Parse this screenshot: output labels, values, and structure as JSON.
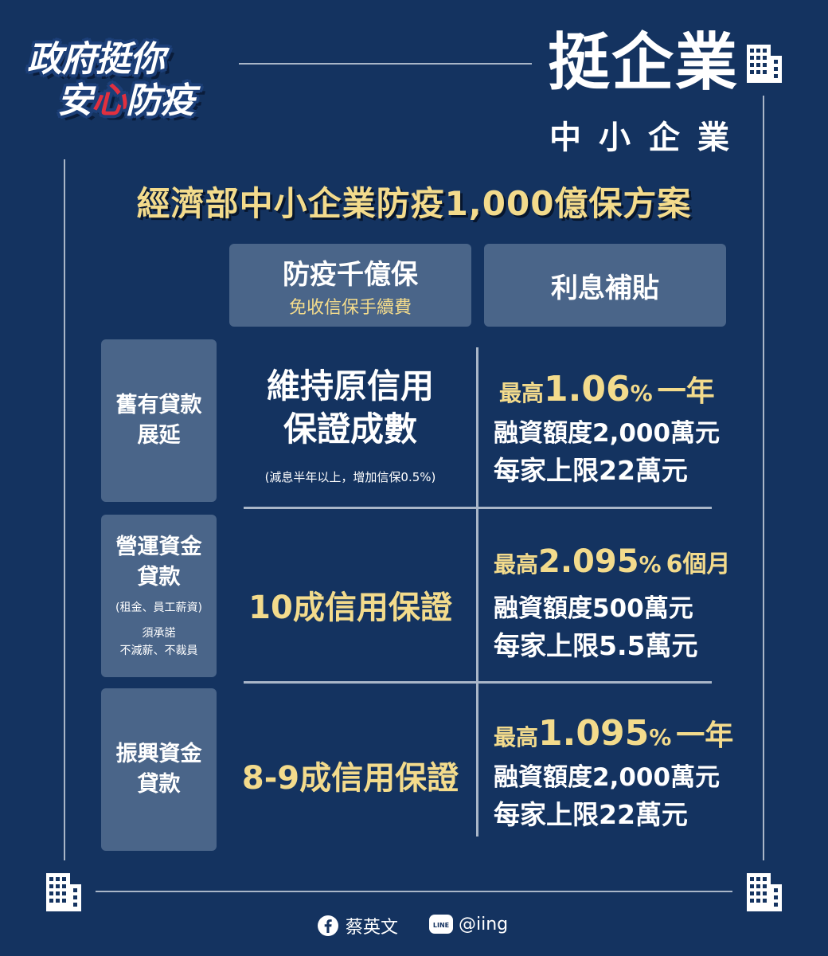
{
  "logo": {
    "line1": "政府挺你",
    "line2_a": "安",
    "line2_heart": "心",
    "line2_b": "防疫"
  },
  "header": {
    "title": "挺企業",
    "subtitle": "中小企業"
  },
  "main_title": "經濟部中小企業防疫1,000億保方案",
  "columns": [
    {
      "title": "防疫千億保",
      "subtitle": "免收信保手續費"
    },
    {
      "title": "利息補貼"
    }
  ],
  "rows": [
    {
      "label_lines": [
        "舊有貸款",
        "展延"
      ],
      "guarantee_lines": [
        "維持原信用",
        "保證成數"
      ],
      "guarantee_note": "(減息半年以上，增加信保0.5%)",
      "rate_prefix": "最高",
      "rate_value": "1.06",
      "rate_pct": "%",
      "rate_period": "一年",
      "credit_line": "融資額度2,000萬元",
      "limit_line": "每家上限22萬元"
    },
    {
      "label_lines": [
        "營運資金",
        "貸款"
      ],
      "label_note": "(租金、員工薪資)",
      "label_note2_lines": [
        "須承諾",
        "不減薪、不裁員"
      ],
      "guarantee": "10成信用保證",
      "rate_prefix": "最高",
      "rate_value": "2.095",
      "rate_pct": "%",
      "rate_period": "6個月",
      "credit_line": "融資額度500萬元",
      "limit_line": "每家上限5.5萬元"
    },
    {
      "label_lines": [
        "振興資金",
        "貸款"
      ],
      "guarantee": "8-9成信用保證",
      "rate_prefix": "最高",
      "rate_value": "1.095",
      "rate_pct": "%",
      "rate_period": "一年",
      "credit_line": "融資額度2,000萬元",
      "limit_line": "每家上限22萬元"
    }
  ],
  "footer": {
    "facebook": "蔡英文",
    "line": "@iing",
    "facebook_icon": "facebook-icon",
    "line_icon": "line-icon"
  },
  "icons": [
    "building-icon"
  ],
  "colors": {
    "background": "#143360",
    "box": "#4a6589",
    "gold": "#f3db8c",
    "heart": "#e2303f"
  }
}
